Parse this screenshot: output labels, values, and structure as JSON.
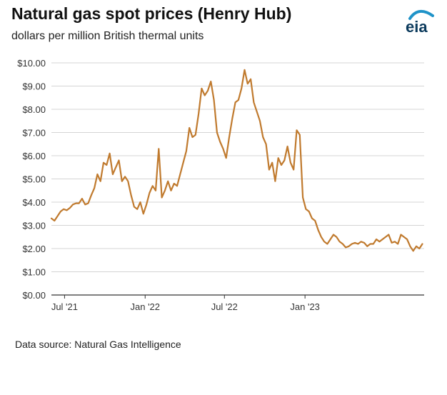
{
  "chart_data": {
    "type": "line",
    "title": "Natural gas spot prices (Henry Hub)",
    "subtitle": "dollars per million British thermal units",
    "ylabel": "",
    "xlabel": "",
    "ylim": [
      0,
      10
    ],
    "y_ticks": [
      "$0.00",
      "$1.00",
      "$2.00",
      "$3.00",
      "$4.00",
      "$5.00",
      "$6.00",
      "$7.00",
      "$8.00",
      "$9.00",
      "$10.00"
    ],
    "y_tick_values": [
      0,
      1,
      2,
      3,
      4,
      5,
      6,
      7,
      8,
      9,
      10
    ],
    "x_ticks": [
      "Jul '21",
      "Jan '22",
      "Jul '22",
      "Jan '23"
    ],
    "x_tick_dates": [
      "2021-07-01",
      "2022-01-01",
      "2022-07-01",
      "2023-01-01"
    ],
    "xlim": [
      "2021-06-01",
      "2023-09-30"
    ],
    "grid": true,
    "color": "#c07a2e",
    "series": [
      {
        "name": "",
        "x": [
          "2021-06-01",
          "2021-06-08",
          "2021-06-15",
          "2021-06-22",
          "2021-06-29",
          "2021-07-06",
          "2021-07-13",
          "2021-07-20",
          "2021-07-27",
          "2021-08-03",
          "2021-08-10",
          "2021-08-17",
          "2021-08-24",
          "2021-08-31",
          "2021-09-07",
          "2021-09-14",
          "2021-09-21",
          "2021-09-28",
          "2021-10-05",
          "2021-10-12",
          "2021-10-19",
          "2021-10-26",
          "2021-11-02",
          "2021-11-09",
          "2021-11-16",
          "2021-11-23",
          "2021-11-30",
          "2021-12-07",
          "2021-12-14",
          "2021-12-21",
          "2021-12-28",
          "2022-01-04",
          "2022-01-11",
          "2022-01-18",
          "2022-01-25",
          "2022-02-01",
          "2022-02-08",
          "2022-02-15",
          "2022-02-22",
          "2022-03-01",
          "2022-03-08",
          "2022-03-15",
          "2022-03-22",
          "2022-03-29",
          "2022-04-05",
          "2022-04-12",
          "2022-04-19",
          "2022-04-26",
          "2022-05-03",
          "2022-05-10",
          "2022-05-17",
          "2022-05-24",
          "2022-05-31",
          "2022-06-07",
          "2022-06-14",
          "2022-06-21",
          "2022-06-28",
          "2022-07-05",
          "2022-07-12",
          "2022-07-19",
          "2022-07-26",
          "2022-08-02",
          "2022-08-09",
          "2022-08-16",
          "2022-08-23",
          "2022-08-30",
          "2022-09-06",
          "2022-09-13",
          "2022-09-20",
          "2022-09-27",
          "2022-10-04",
          "2022-10-11",
          "2022-10-18",
          "2022-10-25",
          "2022-11-01",
          "2022-11-08",
          "2022-11-15",
          "2022-11-22",
          "2022-11-29",
          "2022-12-06",
          "2022-12-13",
          "2022-12-20",
          "2022-12-27",
          "2023-01-03",
          "2023-01-10",
          "2023-01-17",
          "2023-01-24",
          "2023-01-31",
          "2023-02-07",
          "2023-02-14",
          "2023-02-21",
          "2023-02-28",
          "2023-03-07",
          "2023-03-14",
          "2023-03-21",
          "2023-03-28",
          "2023-04-04",
          "2023-04-11",
          "2023-04-18",
          "2023-04-25",
          "2023-05-02",
          "2023-05-09",
          "2023-05-16",
          "2023-05-23",
          "2023-05-30",
          "2023-06-06",
          "2023-06-13",
          "2023-06-20",
          "2023-06-27",
          "2023-07-04",
          "2023-07-11",
          "2023-07-18",
          "2023-07-25",
          "2023-08-01",
          "2023-08-08",
          "2023-08-15",
          "2023-08-22",
          "2023-08-29",
          "2023-09-05",
          "2023-09-12",
          "2023-09-19",
          "2023-09-26"
        ],
        "values": [
          3.3,
          3.2,
          3.4,
          3.6,
          3.7,
          3.65,
          3.75,
          3.9,
          3.95,
          3.95,
          4.15,
          3.9,
          3.95,
          4.3,
          4.6,
          5.2,
          4.9,
          5.7,
          5.6,
          6.1,
          5.2,
          5.5,
          5.8,
          4.9,
          5.1,
          4.9,
          4.3,
          3.8,
          3.7,
          4.0,
          3.5,
          3.9,
          4.4,
          4.7,
          4.5,
          6.3,
          4.2,
          4.5,
          4.9,
          4.5,
          4.8,
          4.7,
          5.2,
          5.7,
          6.2,
          7.2,
          6.8,
          6.9,
          7.8,
          8.9,
          8.6,
          8.8,
          9.2,
          8.4,
          7.0,
          6.6,
          6.3,
          5.9,
          6.8,
          7.6,
          8.3,
          8.4,
          8.9,
          9.7,
          9.1,
          9.3,
          8.3,
          7.9,
          7.5,
          6.8,
          6.5,
          5.4,
          5.7,
          4.9,
          5.9,
          5.6,
          5.8,
          6.4,
          5.7,
          5.4,
          7.1,
          6.9,
          4.2,
          3.7,
          3.6,
          3.3,
          3.2,
          2.8,
          2.5,
          2.3,
          2.2,
          2.4,
          2.6,
          2.5,
          2.3,
          2.2,
          2.05,
          2.1,
          2.2,
          2.25,
          2.2,
          2.3,
          2.25,
          2.1,
          2.2,
          2.2,
          2.4,
          2.3,
          2.4,
          2.5,
          2.6,
          2.25,
          2.3,
          2.2,
          2.6,
          2.5,
          2.4,
          2.1,
          1.9,
          2.1,
          2.0,
          2.2
        ]
      }
    ],
    "source": "Data source: Natural Gas Intelligence",
    "logo_text": "eia"
  }
}
